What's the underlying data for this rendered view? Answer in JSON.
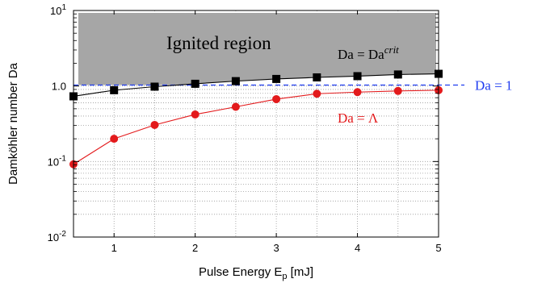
{
  "chart_data": {
    "type": "line",
    "x_scale": "linear",
    "y_scale": "log",
    "xlim": [
      0.5,
      5
    ],
    "ylim": [
      0.01,
      10
    ],
    "x_ticks": [
      1,
      2,
      3,
      4,
      5
    ],
    "x_tick_labels": [
      "1",
      "2",
      "3",
      "4",
      "5"
    ],
    "y_ticks": [
      {
        "value": 0.01,
        "base": "10",
        "exp": "-2"
      },
      {
        "value": 0.1,
        "base": "10",
        "exp": "-1"
      },
      {
        "value": 1,
        "label": "1.0"
      },
      {
        "value": 10,
        "base": "10",
        "exp": "1"
      }
    ],
    "xlabel_parts": {
      "main": "Pulse Energy E",
      "sub": "p",
      "tail": " [mJ]"
    },
    "ylabel": "Damköhler number Da",
    "grid": "dotted",
    "x": [
      0.5,
      1,
      1.5,
      2,
      2.5,
      3,
      3.5,
      4,
      4.5,
      5
    ],
    "series": [
      {
        "id": "crit",
        "color": "#000000",
        "marker": "square",
        "values": [
          0.73,
          0.88,
          0.98,
          1.07,
          1.16,
          1.24,
          1.3,
          1.35,
          1.42,
          1.45
        ]
      },
      {
        "id": "lambda",
        "color": "#e31a1c",
        "marker": "circle",
        "values": [
          0.092,
          0.2,
          0.305,
          0.42,
          0.53,
          0.67,
          0.79,
          0.83,
          0.86,
          0.88
        ]
      }
    ],
    "reference_line": {
      "value": 1.03,
      "color": "#1f3cf0",
      "style": "dashed",
      "label": "Da = 1"
    },
    "ignited_region": {
      "label": "Ignited region",
      "color": "#a6a6a6"
    },
    "annotations": {
      "crit": {
        "prefix": "Da = Da",
        "sup": "crit"
      },
      "lambda": {
        "text": "Da = Λ"
      }
    }
  }
}
